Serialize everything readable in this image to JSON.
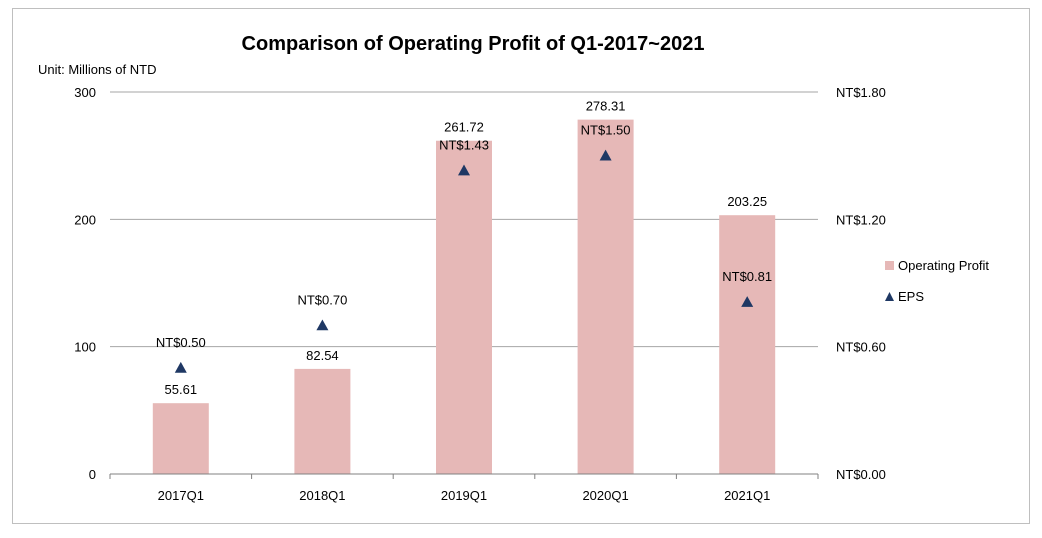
{
  "chart_data": {
    "type": "bar",
    "title": "Comparison of Operating Profit of Q1-2017~2021",
    "unit_label": "Unit: Millions of NTD",
    "categories": [
      "2017Q1",
      "2018Q1",
      "2019Q1",
      "2020Q1",
      "2021Q1"
    ],
    "series": [
      {
        "name": "Operating Profit",
        "kind": "bar",
        "axis": "left",
        "color": "#e6b8b7",
        "values": [
          55.61,
          82.54,
          261.72,
          278.31,
          203.25
        ],
        "labels": [
          "55.61",
          "82.54",
          "261.72",
          "278.31",
          "203.25"
        ]
      },
      {
        "name": "EPS",
        "kind": "marker",
        "marker": "triangle",
        "axis": "right",
        "color": "#1f3864",
        "values": [
          0.5,
          0.7,
          1.43,
          1.5,
          0.81
        ],
        "labels": [
          "NT$0.50",
          "NT$0.70",
          "NT$1.43",
          "NT$1.50",
          "NT$0.81"
        ]
      }
    ],
    "y_left": {
      "ylim": [
        0,
        300
      ],
      "ticks": [
        "0",
        "100",
        "200",
        "300"
      ],
      "tick_values": [
        0,
        100,
        200,
        300
      ]
    },
    "y_right": {
      "ylim": [
        0,
        1.8
      ],
      "ticks": [
        "NT$0.00",
        "NT$0.60",
        "NT$1.20",
        "NT$1.80"
      ],
      "tick_values": [
        0,
        0.6,
        1.2,
        1.8
      ]
    },
    "grid": true,
    "legend_position": "right"
  }
}
